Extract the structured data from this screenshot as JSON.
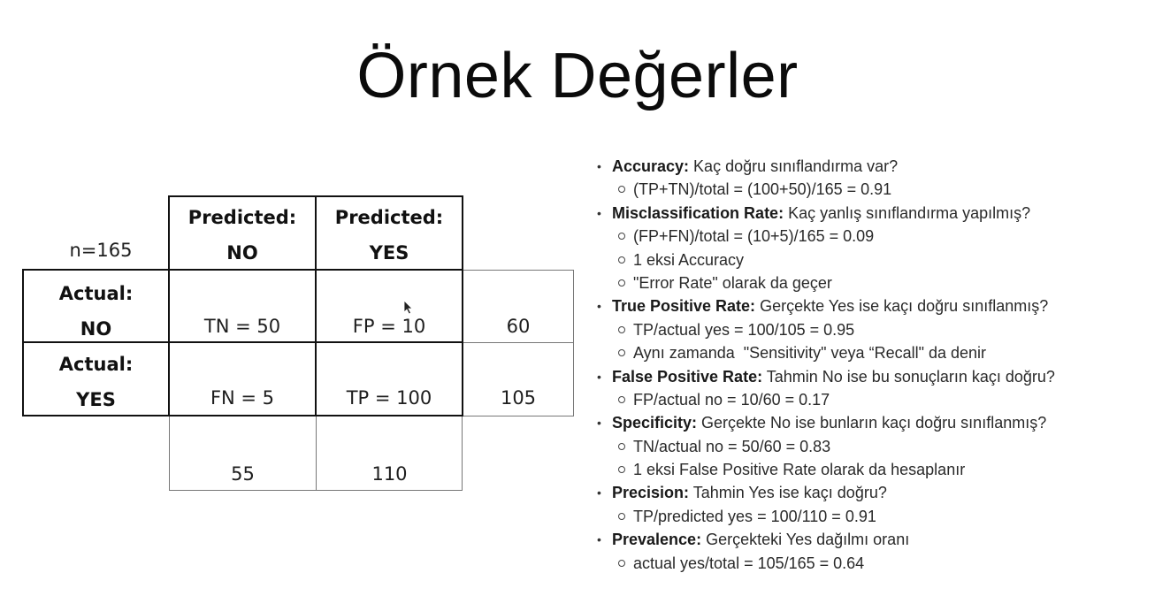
{
  "title": "Örnek Değerler",
  "matrix": {
    "n_label": "n=165",
    "col_headers": [
      {
        "line1": "Predicted:",
        "line2": "NO"
      },
      {
        "line1": "Predicted:",
        "line2": "YES"
      }
    ],
    "row_headers": [
      {
        "line1": "Actual:",
        "line2": "NO"
      },
      {
        "line1": "Actual:",
        "line2": "YES"
      }
    ],
    "cells": [
      [
        "TN = 50",
        "FP = 10"
      ],
      [
        "FN = 5",
        "TP = 100"
      ]
    ],
    "row_totals": [
      "60",
      "105"
    ],
    "col_totals": [
      "55",
      "110"
    ]
  },
  "metrics": [
    {
      "term": "Accuracy:",
      "desc": " Kaç doğru sınıflandırma var?",
      "subs": [
        "(TP+TN)/total = (100+50)/165 = 0.91"
      ]
    },
    {
      "term": "Misclassification Rate:",
      "desc": " Kaç yanlış sınıflandırma yapılmış?",
      "subs": [
        "(FP+FN)/total = (10+5)/165 = 0.09",
        "1 eksi Accuracy",
        "\"Error Rate\" olarak da geçer"
      ]
    },
    {
      "term": "True Positive Rate:",
      "desc": " Gerçekte Yes ise kaçı doğru sınıflanmış?",
      "subs": [
        "TP/actual yes = 100/105 = 0.95",
        "Aynı zamanda  \"Sensitivity\" veya “Recall\" da denir"
      ]
    },
    {
      "term": "False Positive Rate:",
      "desc": " Tahmin No ise bu sonuçların kaçı doğru?",
      "subs": [
        "FP/actual no = 10/60 = 0.17"
      ]
    },
    {
      "term": "Specificity:",
      "desc": " Gerçekte No ise bunların kaçı doğru sınıflanmış?",
      "subs": [
        "TN/actual no = 50/60 = 0.83",
        "1 eksi False Positive Rate olarak da hesaplanır"
      ]
    },
    {
      "term": "Precision:",
      "desc": " Tahmin Yes ise kaçı doğru?",
      "subs": [
        "TP/predicted yes = 100/110 = 0.91"
      ]
    },
    {
      "term": "Prevalence:",
      "desc": " Gerçekteki Yes dağılmı oranı",
      "subs": [
        "actual yes/total = 105/165 = 0.64"
      ]
    }
  ]
}
